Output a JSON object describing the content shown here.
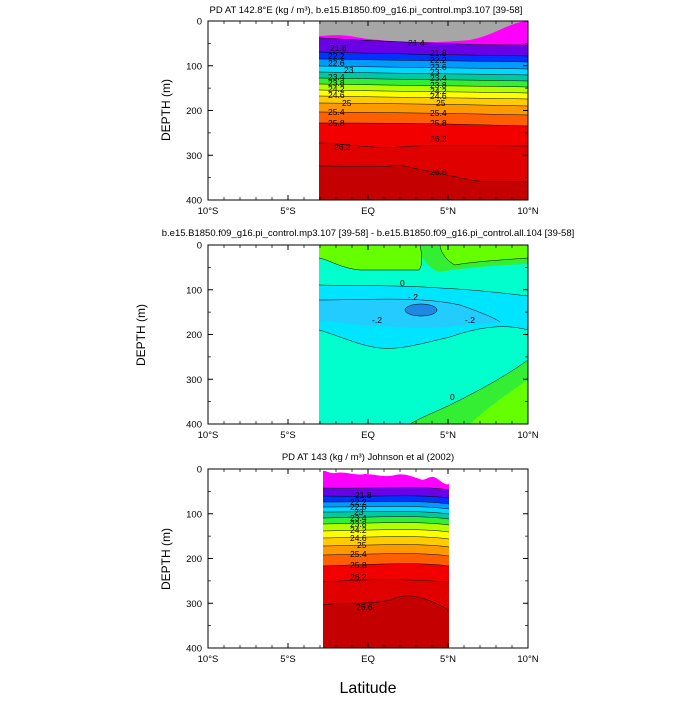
{
  "figure": {
    "common_xlabel": "Latitude",
    "x_ticks": [
      "10°S",
      "5°S",
      "EQ",
      "5°N",
      "10°N"
    ],
    "x_values": [
      -10,
      -5,
      0,
      5,
      10
    ],
    "y_ticks": [
      "0",
      "100",
      "200",
      "300",
      "400"
    ],
    "y_values": [
      0,
      100,
      200,
      300,
      400
    ]
  },
  "chart_data": [
    {
      "type": "contour",
      "title": "PD AT 142.8°E (kg / m³), b.e15.B1850.f09_g16.pi_control.mp3.107 [39-58]",
      "xlabel": "",
      "ylabel": "DEPTH (m)",
      "xlim": [
        -10,
        10
      ],
      "ylim": [
        400,
        0
      ],
      "data_extent_lat": [
        -2.8,
        10
      ],
      "contour_labels": [
        "21.4",
        "21.8",
        "22.2",
        "22.6",
        "23",
        "23.4",
        "23.8",
        "24.2",
        "24.6",
        "25",
        "25.4",
        "25.8",
        "26.2",
        "26.6"
      ],
      "level_depths_m": [
        {
          "level": 21.4,
          "depth_m": 20
        },
        {
          "level": 21.8,
          "depth_m": 48
        },
        {
          "level": 22.2,
          "depth_m": 62
        },
        {
          "level": 22.6,
          "depth_m": 78
        },
        {
          "level": 23.0,
          "depth_m": 92
        },
        {
          "level": 23.4,
          "depth_m": 106
        },
        {
          "level": 23.8,
          "depth_m": 120
        },
        {
          "level": 24.2,
          "depth_m": 134
        },
        {
          "level": 24.6,
          "depth_m": 150
        },
        {
          "level": 25.0,
          "depth_m": 170
        },
        {
          "level": 25.4,
          "depth_m": 192
        },
        {
          "level": 25.8,
          "depth_m": 218
        },
        {
          "level": 26.2,
          "depth_m": 250
        },
        {
          "level": 26.6,
          "depth_m": 300
        }
      ]
    },
    {
      "type": "contour",
      "title": "b.e15.B1850.f09_g16.pi_control.mp3.107 [39-58] - b.e15.B1850.f09_g16.pi_control.all.104 [39-58]",
      "xlabel": "",
      "ylabel": "DEPTH (m)",
      "xlim": [
        -10,
        10
      ],
      "ylim": [
        400,
        0
      ],
      "data_extent_lat": [
        -2.8,
        10
      ],
      "contour_labels": [
        "0",
        "-.2",
        "-.2",
        "-.2",
        "0"
      ],
      "levels": [
        -0.4,
        -0.2,
        0,
        0.2
      ]
    },
    {
      "type": "contour",
      "title": "PD AT 143 (kg / m³) Johnson et al (2002)",
      "xlabel": "",
      "ylabel": "DEPTH (m)",
      "xlim": [
        -10,
        10
      ],
      "ylim": [
        400,
        0
      ],
      "data_extent_lat": [
        -2.6,
        5
      ],
      "contour_labels": [
        "21.8",
        "22.2",
        "22.6",
        "23",
        "23.4",
        "23.8",
        "24.2",
        "24.6",
        "25",
        "25.4",
        "25.8",
        "26.2",
        "26.6"
      ],
      "level_depths_m": [
        {
          "level": 21.8,
          "depth_m": 45
        },
        {
          "level": 22.2,
          "depth_m": 60
        },
        {
          "level": 22.6,
          "depth_m": 72
        },
        {
          "level": 23.0,
          "depth_m": 84
        },
        {
          "level": 23.4,
          "depth_m": 96
        },
        {
          "level": 23.8,
          "depth_m": 108
        },
        {
          "level": 24.2,
          "depth_m": 120
        },
        {
          "level": 24.6,
          "depth_m": 133
        },
        {
          "level": 25.0,
          "depth_m": 148
        },
        {
          "level": 25.4,
          "depth_m": 163
        },
        {
          "level": 25.8,
          "depth_m": 182
        },
        {
          "level": 26.2,
          "depth_m": 205
        },
        {
          "level": 26.6,
          "depth_m": 300
        }
      ]
    }
  ]
}
